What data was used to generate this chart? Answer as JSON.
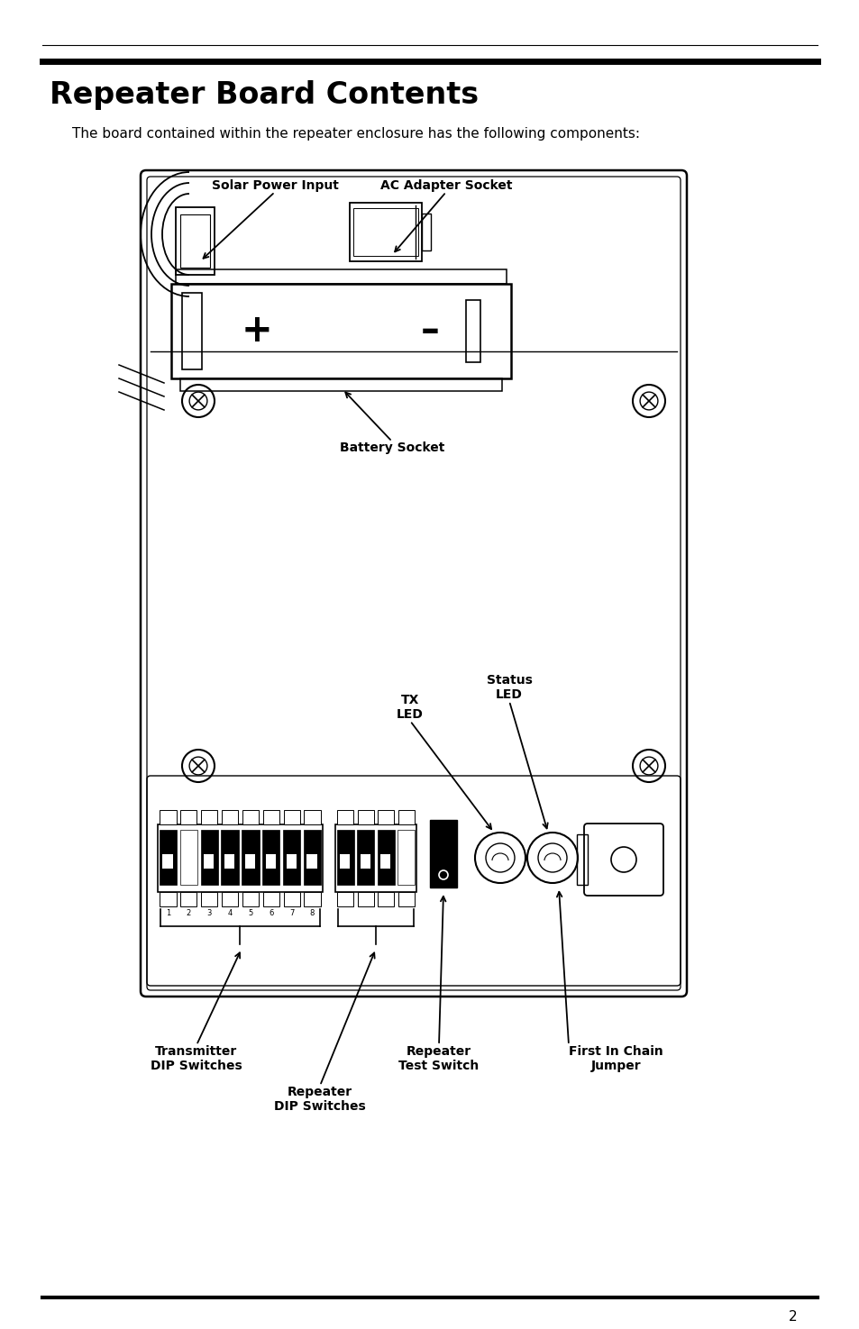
{
  "title": "Repeater Board Contents",
  "subtitle": "The board contained within the repeater enclosure has the following components:",
  "page_number": "2",
  "bg_color": "#ffffff",
  "text_color": "#000000",
  "labels": {
    "solar_power_input": "Solar Power Input",
    "ac_adapter_socket": "AC Adapter Socket",
    "battery_socket": "Battery Socket",
    "tx_led": "TX\nLED",
    "status_led": "Status\nLED",
    "transmitter_dip": "Transmitter\nDIP Switches",
    "repeater_dip": "Repeater\nDIP Switches",
    "repeater_test": "Repeater\nTest Switch",
    "first_in_chain": "First In Chain\nJumper"
  }
}
